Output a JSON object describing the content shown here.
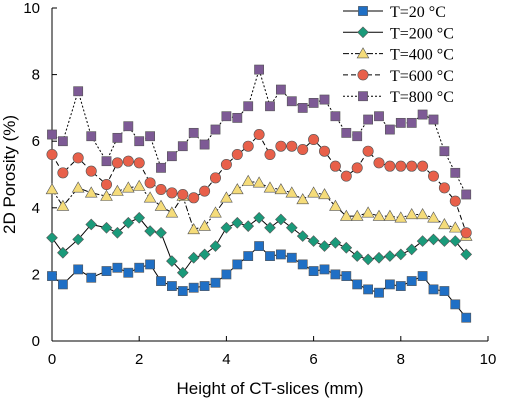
{
  "chart_data": {
    "type": "line",
    "xlabel": "Height of CT-slices (mm)",
    "ylabel": "2D Porosity (%)",
    "xlim": [
      0,
      10
    ],
    "ylim": [
      0,
      10
    ],
    "xticks": [
      "0",
      "2",
      "4",
      "6",
      "8",
      "10"
    ],
    "yticks": [
      "0",
      "2",
      "4",
      "6",
      "8",
      "10"
    ],
    "grid": false,
    "legend_position": "top-right",
    "x": [
      0.0,
      0.25,
      0.6,
      0.9,
      1.25,
      1.5,
      1.75,
      2.0,
      2.25,
      2.5,
      2.75,
      3.0,
      3.25,
      3.5,
      3.75,
      4.0,
      4.25,
      4.5,
      4.75,
      5.0,
      5.25,
      5.5,
      5.75,
      6.0,
      6.25,
      6.5,
      6.75,
      7.0,
      7.25,
      7.5,
      7.75,
      8.0,
      8.25,
      8.5,
      8.75,
      9.0,
      9.25,
      9.5
    ],
    "series": [
      {
        "name": "T=20 °C",
        "color": "#1f6fc5",
        "marker": "square",
        "line": "solid",
        "values": [
          1.95,
          1.7,
          2.15,
          1.9,
          2.1,
          2.2,
          2.05,
          2.2,
          2.3,
          1.8,
          1.65,
          1.5,
          1.6,
          1.65,
          1.75,
          2.0,
          2.3,
          2.55,
          2.85,
          2.55,
          2.6,
          2.5,
          2.3,
          2.1,
          2.15,
          2.0,
          1.95,
          1.7,
          1.55,
          1.45,
          1.7,
          1.65,
          1.8,
          1.95,
          1.55,
          1.5,
          1.1,
          0.7
        ]
      },
      {
        "name": "T=200 °C",
        "color": "#1a9a7a",
        "marker": "diamond",
        "line": "solid",
        "values": [
          3.1,
          2.65,
          3.05,
          3.5,
          3.4,
          3.25,
          3.55,
          3.7,
          3.3,
          3.25,
          2.4,
          2.05,
          2.5,
          2.6,
          2.85,
          3.4,
          3.55,
          3.45,
          3.7,
          3.4,
          3.65,
          3.4,
          3.15,
          3.0,
          2.85,
          2.95,
          2.8,
          2.55,
          2.45,
          2.5,
          2.55,
          2.6,
          2.75,
          3.0,
          3.05,
          3.0,
          3.0,
          2.6
        ]
      },
      {
        "name": "T=400 °C",
        "color": "#f5dc7a",
        "marker": "triangle",
        "line": "dashdot",
        "values": [
          4.55,
          4.05,
          4.6,
          4.45,
          4.35,
          4.5,
          4.6,
          4.65,
          4.3,
          4.05,
          3.85,
          4.35,
          3.35,
          3.45,
          3.85,
          4.3,
          4.55,
          4.8,
          4.75,
          4.6,
          4.55,
          4.45,
          4.25,
          4.45,
          4.4,
          4.05,
          3.75,
          3.75,
          3.85,
          3.75,
          3.75,
          3.7,
          3.8,
          3.8,
          3.7,
          3.5,
          3.4,
          3.15
        ]
      },
      {
        "name": "T=600 °C",
        "color": "#e8604a",
        "marker": "circle",
        "line": "dashed",
        "values": [
          5.6,
          5.05,
          5.5,
          5.1,
          4.7,
          5.35,
          5.4,
          5.35,
          4.75,
          4.55,
          4.45,
          4.4,
          4.3,
          4.5,
          4.9,
          5.3,
          5.6,
          5.85,
          6.2,
          5.6,
          5.85,
          5.85,
          5.75,
          6.05,
          5.7,
          5.25,
          4.95,
          5.2,
          5.7,
          5.35,
          5.25,
          5.25,
          5.25,
          5.25,
          4.95,
          4.6,
          4.2,
          3.25
        ]
      },
      {
        "name": "T=800 °C",
        "color": "#7d5a95",
        "marker": "square",
        "line": "dotted",
        "values": [
          6.2,
          6.0,
          7.5,
          6.15,
          5.4,
          6.1,
          6.45,
          6.0,
          6.15,
          5.2,
          5.55,
          5.85,
          6.25,
          5.9,
          6.35,
          6.75,
          6.7,
          7.05,
          8.15,
          7.05,
          7.55,
          7.2,
          7.0,
          7.15,
          7.25,
          6.75,
          6.25,
          6.15,
          6.65,
          6.75,
          6.35,
          6.55,
          6.55,
          6.8,
          6.65,
          5.7,
          5.05,
          4.4
        ]
      }
    ]
  }
}
